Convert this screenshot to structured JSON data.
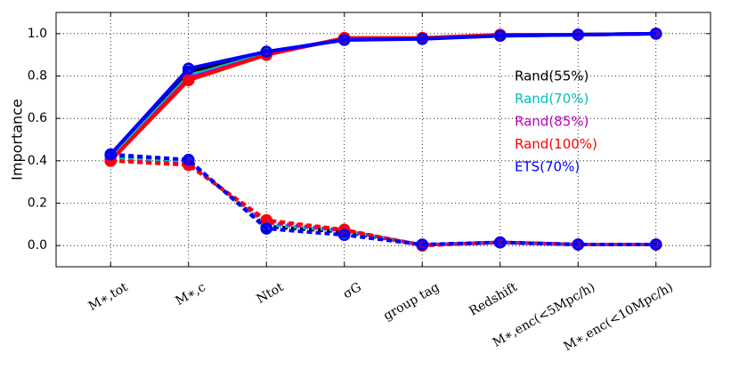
{
  "chart_data": {
    "type": "line",
    "ylabel": "Importance",
    "categories": [
      "M∗,tot",
      "M∗,c",
      "Ntot",
      "σG",
      "group tag",
      "Redshift",
      "M∗,enc(<5Mpc/h)",
      "M∗,enc(<10Mpc/h)"
    ],
    "ylim": [
      -0.1,
      1.1
    ],
    "yticks": [
      {
        "value": 0.0,
        "label": "0.0"
      },
      0.2,
      0.4,
      0.6,
      0.8,
      {
        "value": 1.0,
        "label": "1.0"
      }
    ],
    "grid": true,
    "legend": "center right",
    "series": [
      {
        "name": "Rand(55%)",
        "color": "#000000",
        "values": [
          0.42,
          0.82,
          0.91,
          0.975,
          0.978,
          0.99,
          0.995,
          1.0
        ],
        "individual": [
          0.42,
          0.4,
          0.09,
          0.065,
          0.003,
          0.015,
          0.005,
          0.005
        ]
      },
      {
        "name": "Rand(70%)",
        "color": "#00bfbf",
        "values": [
          0.41,
          0.8,
          0.905,
          0.975,
          0.978,
          0.99,
          0.995,
          1.0
        ],
        "individual": [
          0.41,
          0.39,
          0.1,
          0.07,
          0.003,
          0.015,
          0.005,
          0.005
        ]
      },
      {
        "name": "Rand(85%)",
        "color": "#bf00bf",
        "values": [
          0.4,
          0.79,
          0.9,
          0.978,
          0.98,
          0.992,
          0.995,
          1.0
        ],
        "individual": [
          0.4,
          0.385,
          0.11,
          0.072,
          0.002,
          0.015,
          0.005,
          0.005
        ]
      },
      {
        "name": "Rand(100%)",
        "color": "#ff0000",
        "values": [
          0.4,
          0.78,
          0.9,
          0.98,
          0.98,
          0.995,
          0.995,
          1.0
        ],
        "individual": [
          0.4,
          0.38,
          0.12,
          0.075,
          0.0,
          0.015,
          0.005,
          0.005
        ]
      },
      {
        "name": "ETS(70%)",
        "color": "#0000ff",
        "values": [
          0.43,
          0.835,
          0.915,
          0.97,
          0.975,
          0.99,
          0.995,
          1.0
        ],
        "individual": [
          0.43,
          0.405,
          0.08,
          0.05,
          0.005,
          0.015,
          0.005,
          0.005
        ]
      }
    ]
  }
}
